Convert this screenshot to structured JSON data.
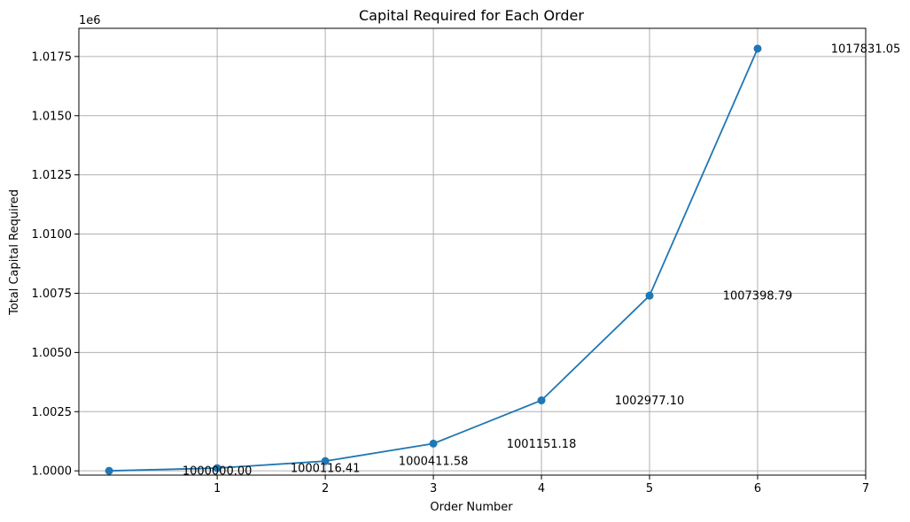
{
  "chart_data": {
    "type": "line",
    "title": "Capital Required for Each Order",
    "xlabel": "Order Number",
    "ylabel": "Total Capital Required",
    "y_offset_label": "1e6",
    "xlim": [
      -0.28,
      7
    ],
    "ylim": [
      0.99982,
      1.01869
    ],
    "xticks": [
      1,
      2,
      3,
      4,
      5,
      6,
      7
    ],
    "xtick_labels": [
      "1",
      "2",
      "3",
      "4",
      "5",
      "6",
      "7"
    ],
    "yticks": [
      1.0,
      1.0025,
      1.005,
      1.0075,
      1.01,
      1.0125,
      1.015,
      1.0175
    ],
    "ytick_labels": [
      "1.0000",
      "1.0025",
      "1.0050",
      "1.0075",
      "1.0100",
      "1.0125",
      "1.0150",
      "1.0175"
    ],
    "grid": true,
    "color": "#1f77b4",
    "series": [
      {
        "x": [
          0,
          1,
          2,
          3,
          4,
          5,
          6
        ],
        "y": [
          1.0,
          1.00011641,
          1.00041158,
          1.00115118,
          1.0029771,
          1.00739879,
          1.01783105
        ]
      }
    ],
    "annotations": [
      {
        "text": "1000000.00",
        "x": 1,
        "y": 1.0
      },
      {
        "text": "1000116.41",
        "x": 2,
        "y": 1.00011641
      },
      {
        "text": "1000411.58",
        "x": 3,
        "y": 1.00041158
      },
      {
        "text": "1001151.18",
        "x": 4,
        "y": 1.00115118
      },
      {
        "text": "1002977.10",
        "x": 5,
        "y": 1.0029771
      },
      {
        "text": "1007398.79",
        "x": 6,
        "y": 1.00739879
      },
      {
        "text": "1017831.05",
        "x": 7,
        "y": 1.01783105
      }
    ]
  }
}
